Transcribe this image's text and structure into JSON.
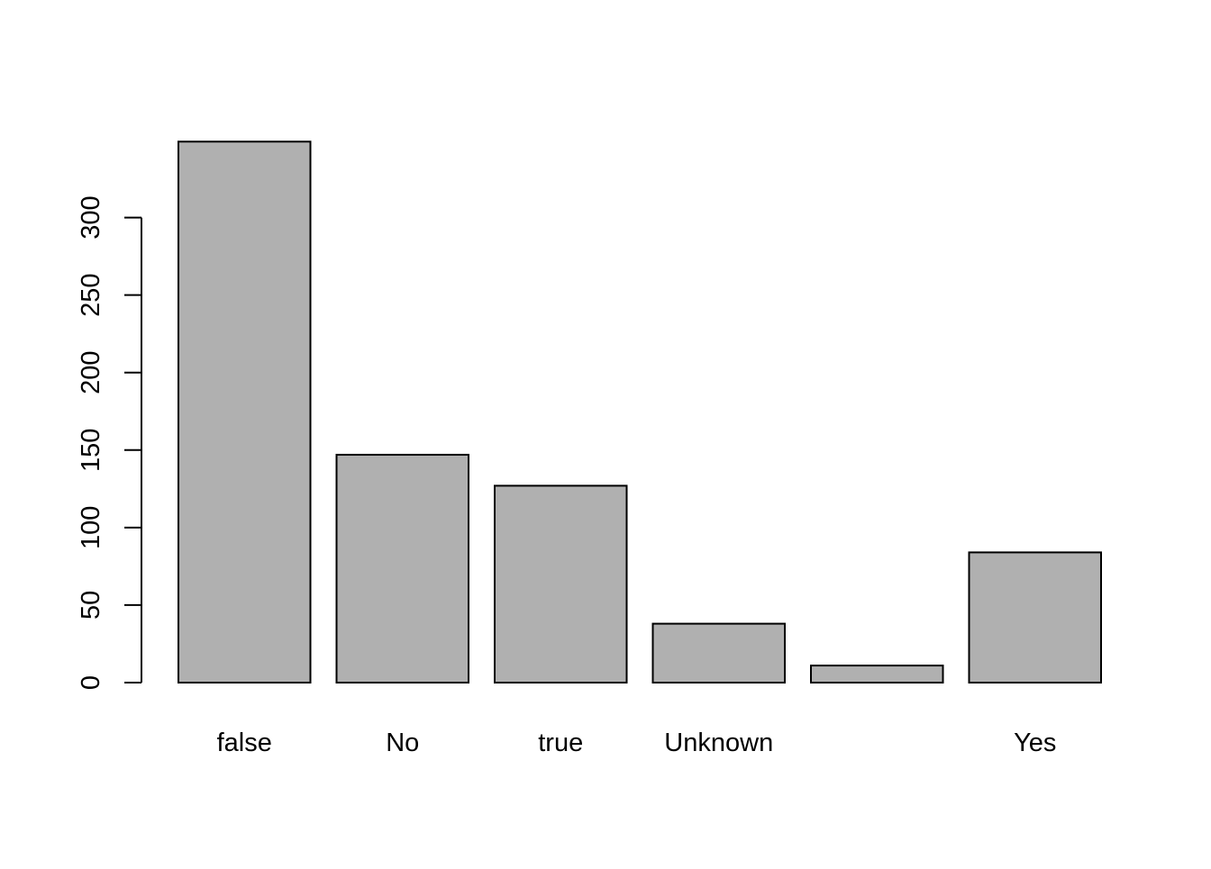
{
  "chart_data": {
    "type": "bar",
    "categories": [
      "false",
      "No",
      "true",
      "Unknown",
      "",
      "Yes"
    ],
    "values": [
      349,
      147,
      127,
      38,
      11,
      84
    ],
    "title": "",
    "xlabel": "",
    "ylabel": "",
    "ylim": [
      0,
      349
    ],
    "yticks": [
      0,
      50,
      100,
      150,
      200,
      250,
      300
    ],
    "ytick_labels": [
      "0",
      "50",
      "100",
      "150",
      "200",
      "250",
      "300"
    ],
    "grid": false,
    "legend": "none"
  },
  "colors": {
    "bar_fill": "#b0b0b0",
    "bar_stroke": "#000000",
    "axis": "#000000",
    "background": "#ffffff"
  }
}
